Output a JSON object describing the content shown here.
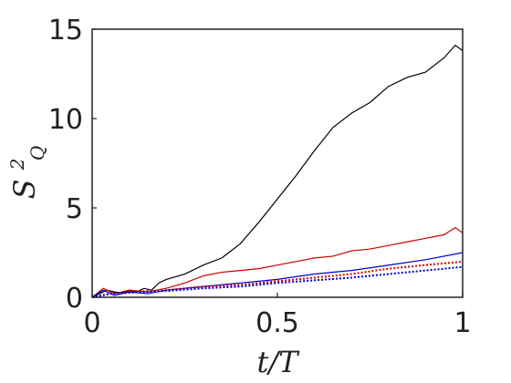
{
  "chart_data": {
    "type": "line",
    "title": "",
    "xlabel": "t/T",
    "ylabel": "S",
    "ylabel_superscript": "2",
    "ylabel_subscript": "Q",
    "xlim": [
      0,
      1
    ],
    "ylim": [
      0,
      15
    ],
    "xticks": [
      0,
      0.5,
      1
    ],
    "xtick_labels": [
      "0",
      "0.5",
      "1"
    ],
    "yticks": [
      0,
      5,
      10,
      15
    ],
    "ytick_labels": [
      "0",
      "5",
      "10",
      "15"
    ],
    "grid": false,
    "legend": "none",
    "series": [
      {
        "color": "#000000",
        "style": "solid",
        "x": [
          0,
          0.02,
          0.04,
          0.06,
          0.08,
          0.1,
          0.12,
          0.14,
          0.16,
          0.18,
          0.2,
          0.25,
          0.3,
          0.35,
          0.4,
          0.45,
          0.5,
          0.55,
          0.6,
          0.65,
          0.7,
          0.75,
          0.8,
          0.85,
          0.9,
          0.95,
          0.98,
          1.0
        ],
        "y": [
          0,
          0.2,
          0.4,
          0.3,
          0.25,
          0.35,
          0.3,
          0.5,
          0.4,
          0.8,
          1.0,
          1.3,
          1.8,
          2.2,
          3.0,
          4.2,
          5.5,
          6.8,
          8.2,
          9.5,
          10.3,
          10.9,
          11.8,
          12.3,
          12.6,
          13.4,
          14.1,
          13.8
        ]
      },
      {
        "color": "#cc0000",
        "style": "solid",
        "x": [
          0,
          0.03,
          0.06,
          0.1,
          0.15,
          0.2,
          0.25,
          0.3,
          0.35,
          0.4,
          0.45,
          0.5,
          0.55,
          0.6,
          0.65,
          0.7,
          0.75,
          0.8,
          0.85,
          0.9,
          0.95,
          0.98,
          1.0
        ],
        "y": [
          0,
          0.5,
          0.2,
          0.4,
          0.3,
          0.5,
          0.8,
          1.2,
          1.4,
          1.5,
          1.6,
          1.8,
          2.0,
          2.2,
          2.3,
          2.6,
          2.7,
          2.9,
          3.1,
          3.3,
          3.5,
          3.9,
          3.6
        ]
      },
      {
        "color": "#0000cc",
        "style": "solid",
        "x": [
          0,
          0.03,
          0.06,
          0.1,
          0.15,
          0.2,
          0.3,
          0.4,
          0.5,
          0.6,
          0.7,
          0.8,
          0.9,
          1.0
        ],
        "y": [
          0,
          0.4,
          0.1,
          0.3,
          0.2,
          0.4,
          0.6,
          0.8,
          1.0,
          1.3,
          1.5,
          1.8,
          2.1,
          2.5
        ]
      },
      {
        "color": "#cc0000",
        "style": "dotted",
        "x": [
          0,
          0.05,
          0.1,
          0.2,
          0.3,
          0.4,
          0.5,
          0.6,
          0.7,
          0.8,
          0.9,
          1.0
        ],
        "y": [
          0,
          0.2,
          0.3,
          0.4,
          0.6,
          0.7,
          0.9,
          1.1,
          1.3,
          1.6,
          1.8,
          2.0
        ]
      },
      {
        "color": "#0000cc",
        "style": "dotted",
        "x": [
          0,
          0.05,
          0.1,
          0.2,
          0.3,
          0.4,
          0.5,
          0.6,
          0.7,
          0.8,
          0.9,
          1.0
        ],
        "y": [
          0,
          0.2,
          0.25,
          0.35,
          0.5,
          0.6,
          0.8,
          0.95,
          1.1,
          1.3,
          1.5,
          1.7
        ]
      }
    ]
  }
}
